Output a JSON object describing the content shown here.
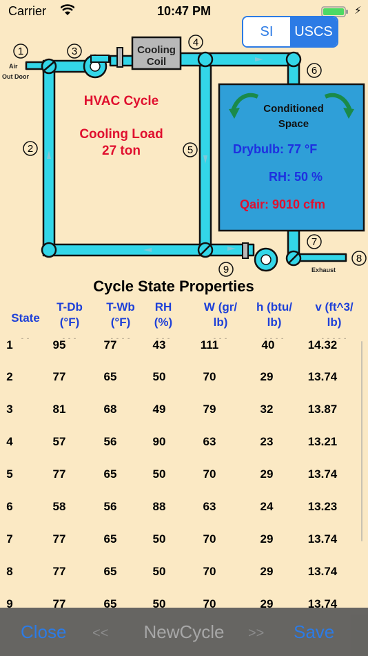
{
  "status_bar": {
    "carrier": "Carrier",
    "time": "10:47 PM"
  },
  "units_toggle": {
    "options": [
      "SI",
      "USCS"
    ],
    "selected": "USCS"
  },
  "diagram": {
    "node_labels": [
      "1",
      "2",
      "3",
      "4",
      "5",
      "6",
      "7",
      "8",
      "9"
    ],
    "air_outdoor_line1": "Air",
    "air_outdoor_line2": "Out Door",
    "cooling_coil_line1": "Cooling",
    "cooling_coil_line2": "Coil",
    "cycle_title": "HVAC Cycle",
    "load_title": "Cooling Load",
    "load_value": "27 ton",
    "space_line1": "Conditioned",
    "space_line2": "Space",
    "drybulb": "Drybulb: 77 °F",
    "rh": "RH: 50 %",
    "qair": "Qair: 9010 cfm",
    "exhaust": "Exhaust",
    "colors": {
      "duct": "#33d6e8",
      "space": "#2f9fd8",
      "label_red": "#e0102f",
      "label_blue": "#1e30e0"
    }
  },
  "table": {
    "title": "Cycle State Properties",
    "headers": [
      {
        "l1": "State",
        "l2": ""
      },
      {
        "l1": "T-Db",
        "l2": "(°F)"
      },
      {
        "l1": "T-Wb",
        "l2": "(°F)"
      },
      {
        "l1": "RH",
        "l2": "(%)"
      },
      {
        "l1": "W  (gr/",
        "l2": "lb)"
      },
      {
        "l1": "h  (btu/",
        "l2": "lb)"
      },
      {
        "l1": "v   (ft^3/",
        "l2": "lb)"
      }
    ],
    "rows": [
      [
        "1",
        "95",
        "77",
        "43",
        "111",
        "40",
        "14.32"
      ],
      [
        "2",
        "77",
        "65",
        "50",
        "70",
        "29",
        "13.74"
      ],
      [
        "3",
        "81",
        "68",
        "49",
        "79",
        "32",
        "13.87"
      ],
      [
        "4",
        "57",
        "56",
        "90",
        "63",
        "23",
        "13.21"
      ],
      [
        "5",
        "77",
        "65",
        "50",
        "70",
        "29",
        "13.74"
      ],
      [
        "6",
        "58",
        "56",
        "88",
        "63",
        "24",
        "13.23"
      ],
      [
        "7",
        "77",
        "65",
        "50",
        "70",
        "29",
        "13.74"
      ],
      [
        "8",
        "77",
        "65",
        "50",
        "70",
        "29",
        "13.74"
      ],
      [
        "9",
        "77",
        "65",
        "50",
        "70",
        "29",
        "13.74"
      ]
    ]
  },
  "toolbar": {
    "close": "Close",
    "prev": "<<",
    "new_cycle": "NewCycle",
    "next": ">>",
    "save": "Save"
  }
}
